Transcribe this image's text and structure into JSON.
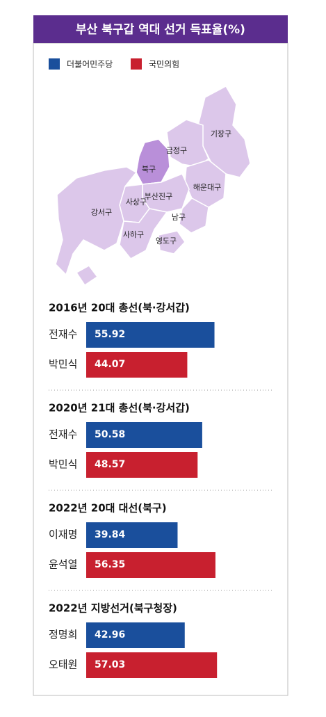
{
  "title": "부산 북구갑 역대 선거 득표율(%)",
  "legend": [
    {
      "name": "더불어민주당",
      "color": "#1a4f9c"
    },
    {
      "name": "국민의힘",
      "color": "#c8202f"
    }
  ],
  "map": {
    "labels": [
      "기장구",
      "금정구",
      "북구",
      "해운대구",
      "부산진구",
      "사상구",
      "강서구",
      "남구",
      "사하구",
      "영도구"
    ]
  },
  "chart_data": [
    {
      "type": "bar",
      "title": "2016년 20대 총선(북·강서갑)",
      "categories": [
        "전재수",
        "박민식"
      ],
      "values": [
        55.92,
        44.07
      ],
      "colors": [
        "#1a4f9c",
        "#c8202f"
      ]
    },
    {
      "type": "bar",
      "title": "2020년 21대 총선(북·강서갑)",
      "categories": [
        "전재수",
        "박민식"
      ],
      "values": [
        50.58,
        48.57
      ],
      "colors": [
        "#1a4f9c",
        "#c8202f"
      ]
    },
    {
      "type": "bar",
      "title": "2022년 20대 대선(북구)",
      "categories": [
        "이재명",
        "윤석열"
      ],
      "values": [
        39.84,
        56.35
      ],
      "colors": [
        "#1a4f9c",
        "#c8202f"
      ]
    },
    {
      "type": "bar",
      "title": "2022년 지방선거(북구청장)",
      "categories": [
        "정명희",
        "오태원"
      ],
      "values": [
        42.96,
        57.03
      ],
      "colors": [
        "#1a4f9c",
        "#c8202f"
      ]
    }
  ]
}
